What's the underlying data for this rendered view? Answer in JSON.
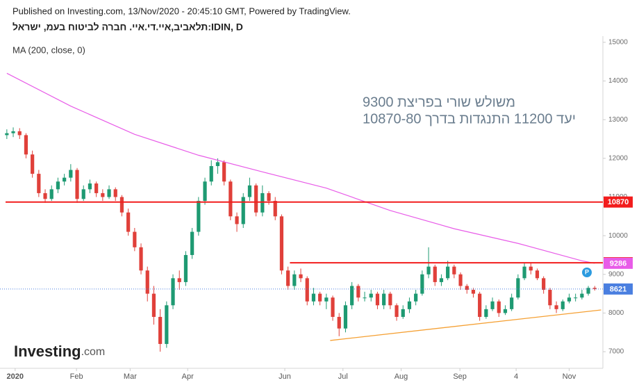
{
  "chart_data": {
    "type": "candlestick",
    "header": "Published on Investing.com, 13/Nov/2020 - 20:45:10 GMT, Powered by TradingView.",
    "title": "תלאביב,איי.די.איי. חברה לביטוח בעמ, ישראל:IDIN, D",
    "indicator_label": "MA (200, close, 0)",
    "annotations": [
      "משולש שורי בפריצת 9300",
      "יעד 11200 התנגדות בדרך 10870-80"
    ],
    "watermark": "Investing",
    "watermark_suffix": ".com",
    "up_color": "#1e9a72",
    "down_color": "#e0403a",
    "ohlc": [
      [
        12600,
        12750,
        12500,
        12650
      ],
      [
        12650,
        12800,
        12550,
        12700
      ],
      [
        12700,
        12780,
        12500,
        12600
      ],
      [
        12600,
        12650,
        12000,
        12100
      ],
      [
        12100,
        12200,
        11500,
        11600
      ],
      [
        11600,
        11700,
        11000,
        11100
      ],
      [
        11100,
        11200,
        10850,
        10950
      ],
      [
        10950,
        11300,
        10900,
        11200
      ],
      [
        11200,
        11500,
        11100,
        11400
      ],
      [
        11400,
        11600,
        11300,
        11500
      ],
      [
        11500,
        11850,
        11400,
        11700
      ],
      [
        11700,
        11750,
        10850,
        10950
      ],
      [
        10950,
        11300,
        10900,
        11200
      ],
      [
        11200,
        11450,
        11100,
        11350
      ],
      [
        11350,
        11400,
        11000,
        11100
      ],
      [
        11100,
        11200,
        10900,
        11000
      ],
      [
        11000,
        11300,
        10950,
        11200
      ],
      [
        11200,
        11250,
        10900,
        11000
      ],
      [
        11000,
        11050,
        10500,
        10600
      ],
      [
        10600,
        10700,
        10000,
        10100
      ],
      [
        10100,
        10200,
        9600,
        9700
      ],
      [
        9700,
        9800,
        9000,
        9100
      ],
      [
        9100,
        9200,
        8300,
        8500
      ],
      [
        8500,
        8700,
        7700,
        7900
      ],
      [
        7900,
        8100,
        7000,
        7200
      ],
      [
        7200,
        8300,
        7100,
        8200
      ],
      [
        8200,
        9000,
        8100,
        8900
      ],
      [
        8900,
        9100,
        8600,
        8800
      ],
      [
        8800,
        9600,
        8700,
        9500
      ],
      [
        9500,
        10200,
        9400,
        10100
      ],
      [
        10100,
        11000,
        10000,
        10900
      ],
      [
        10900,
        11500,
        10800,
        11400
      ],
      [
        11400,
        11950,
        11300,
        11800
      ],
      [
        11800,
        12000,
        11600,
        11900
      ],
      [
        11900,
        11950,
        11300,
        11400
      ],
      [
        11400,
        11450,
        10400,
        10500
      ],
      [
        10500,
        10600,
        10100,
        10300
      ],
      [
        10300,
        11100,
        10200,
        11000
      ],
      [
        11000,
        11500,
        10900,
        11300
      ],
      [
        11300,
        11350,
        10500,
        10600
      ],
      [
        10600,
        11300,
        10500,
        11100
      ],
      [
        11100,
        11150,
        10800,
        10900
      ],
      [
        10900,
        11000,
        10400,
        10500
      ],
      [
        10500,
        10550,
        9000,
        9100
      ],
      [
        9100,
        9200,
        8600,
        8700
      ],
      [
        8700,
        9100,
        8600,
        9000
      ],
      [
        9000,
        9150,
        8800,
        8900
      ],
      [
        8900,
        8950,
        8200,
        8300
      ],
      [
        8300,
        8650,
        8200,
        8500
      ],
      [
        8500,
        8550,
        8200,
        8300
      ],
      [
        8300,
        8500,
        8100,
        8400
      ],
      [
        8400,
        8450,
        7800,
        7900
      ],
      [
        7900,
        8000,
        7400,
        7600
      ],
      [
        7600,
        8300,
        7500,
        8200
      ],
      [
        8200,
        8800,
        8100,
        8700
      ],
      [
        8700,
        8750,
        8300,
        8400
      ],
      [
        8400,
        8550,
        8300,
        8400
      ],
      [
        8400,
        8600,
        8300,
        8500
      ],
      [
        8500,
        8550,
        8100,
        8200
      ],
      [
        8200,
        8600,
        8100,
        8500
      ],
      [
        8500,
        8550,
        8100,
        8200
      ],
      [
        8200,
        8250,
        7800,
        7900
      ],
      [
        7900,
        8200,
        7850,
        8100
      ],
      [
        8100,
        8400,
        8000,
        8300
      ],
      [
        8300,
        8600,
        8200,
        8500
      ],
      [
        8500,
        9100,
        8450,
        9000
      ],
      [
        9000,
        9700,
        8900,
        9200
      ],
      [
        9200,
        9250,
        8700,
        8800
      ],
      [
        8800,
        9000,
        8700,
        8900
      ],
      [
        8900,
        9350,
        8850,
        9200
      ],
      [
        9200,
        9250,
        8900,
        9000
      ],
      [
        9000,
        9050,
        8600,
        8700
      ],
      [
        8700,
        8750,
        8500,
        8600
      ],
      [
        8600,
        8650,
        8400,
        8500
      ],
      [
        8500,
        8550,
        7800,
        7900
      ],
      [
        7900,
        8200,
        7850,
        8100
      ],
      [
        8100,
        8400,
        8050,
        8300
      ],
      [
        8300,
        8350,
        7900,
        8000
      ],
      [
        8000,
        8200,
        7950,
        8100
      ],
      [
        8100,
        8500,
        8050,
        8400
      ],
      [
        8400,
        9000,
        8350,
        8900
      ],
      [
        8900,
        9300,
        8850,
        9200
      ],
      [
        9200,
        9300,
        9000,
        9100
      ],
      [
        9100,
        9150,
        8850,
        8900
      ],
      [
        8900,
        8950,
        8500,
        8600
      ],
      [
        8600,
        8650,
        8100,
        8200
      ],
      [
        8200,
        8300,
        8000,
        8100
      ],
      [
        8100,
        8350,
        8050,
        8300
      ],
      [
        8300,
        8500,
        8250,
        8400
      ],
      [
        8400,
        8500,
        8300,
        8400
      ],
      [
        8400,
        8600,
        8350,
        8500
      ],
      [
        8500,
        8700,
        8450,
        8650
      ],
      [
        8650,
        8700,
        8580,
        8621
      ]
    ],
    "ma": {
      "color": "#e85ce8",
      "x": [
        0,
        10,
        20,
        30,
        40,
        50,
        60,
        70,
        80,
        90,
        92
      ],
      "values": [
        14200,
        13350,
        12620,
        12080,
        11650,
        11230,
        10650,
        10180,
        9800,
        9350,
        9286
      ]
    },
    "hlines": [
      {
        "value": 10870,
        "x_start": -0.2,
        "color": "#f21d1d"
      },
      {
        "value": 9300,
        "x_start": 44.3,
        "color": "#f21d1d"
      }
    ],
    "trendline": {
      "x": [
        50.6,
        93
      ],
      "values": [
        7290,
        8080
      ],
      "color": "#f5a033"
    },
    "last_price_color": "#4a7fe0",
    "xlim": [
      -0.2,
      93.06
    ],
    "xticks": [
      {
        "value": 1.3,
        "label": "2020"
      },
      {
        "value": 10.9,
        "label": "Feb"
      },
      {
        "value": 19.3,
        "label": "Mar"
      },
      {
        "value": 28.3,
        "label": "Apr"
      },
      {
        "value": 43.5,
        "label": "Jun"
      },
      {
        "value": 52.6,
        "label": "Jul"
      },
      {
        "value": 61.7,
        "label": "Aug"
      },
      {
        "value": 70.9,
        "label": "Sep"
      },
      {
        "value": 79.7,
        "label": "4"
      },
      {
        "value": 88,
        "label": "Nov"
      }
    ],
    "ylim": [
      6570,
      15160
    ],
    "yticks": [
      7000,
      8000,
      9000,
      10000,
      11000,
      12000,
      13000,
      14000,
      15000
    ]
  }
}
